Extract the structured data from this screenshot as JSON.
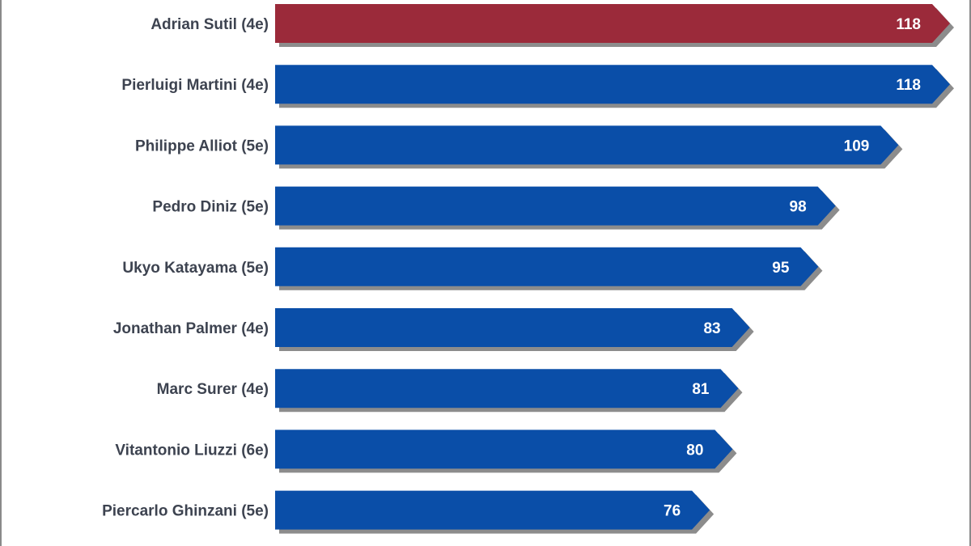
{
  "chart_data": {
    "type": "bar",
    "orientation": "horizontal",
    "title": "",
    "xlabel": "",
    "ylabel": "",
    "categories": [
      "Adrian Sutil (4e)",
      "Pierluigi Martini (4e)",
      "Philippe Alliot (5e)",
      "Pedro Diniz (5e)",
      "Ukyo Katayama (5e)",
      "Jonathan Palmer (4e)",
      "Marc Surer (4e)",
      "Vitantonio Liuzzi (6e)",
      "Piercarlo Ghinzani (5e)"
    ],
    "values": [
      118,
      118,
      109,
      98,
      95,
      83,
      81,
      80,
      76
    ],
    "highlight_index": 0,
    "colors": {
      "bar": "#0a4ea8",
      "highlight": "#9b2a3a",
      "shadow": "#8c8c8c",
      "label": "#3d4350",
      "value_label": "#ffffff"
    },
    "xlim": [
      0,
      118
    ],
    "grid": false,
    "legend": "none",
    "data_labels": true
  }
}
